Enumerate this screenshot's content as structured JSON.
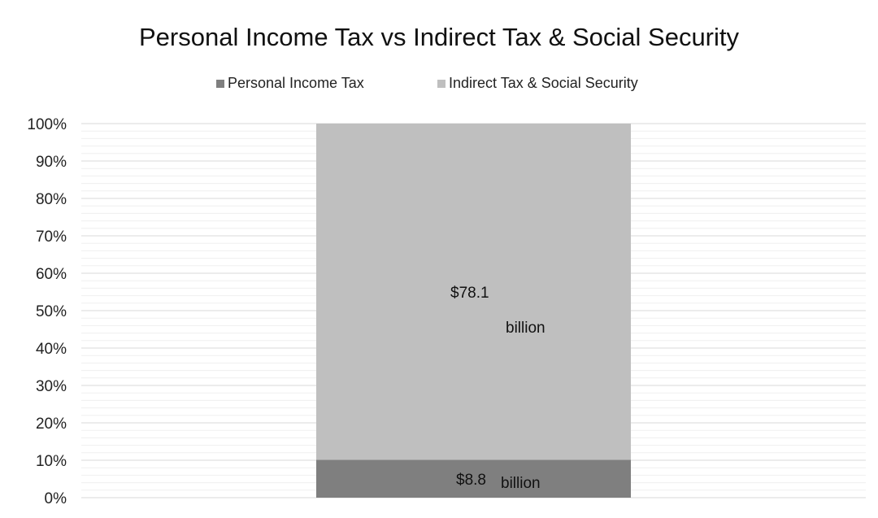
{
  "chart_data": {
    "type": "bar",
    "stacked": true,
    "percent_stacked": true,
    "title": "Personal Income Tax vs Indirect Tax & Social Security",
    "categories": [
      ""
    ],
    "series": [
      {
        "name": "Personal Income Tax",
        "values": [
          8.8
        ],
        "color": "#7f7f7f",
        "label": [
          "$8.8",
          "billion"
        ]
      },
      {
        "name": "Indirect Tax & Social Security",
        "values": [
          78.1
        ],
        "color": "#bfbfbf",
        "label": [
          "$78.1",
          "billion"
        ]
      }
    ],
    "y_ticks": [
      "0%",
      "10%",
      "20%",
      "30%",
      "40%",
      "50%",
      "60%",
      "70%",
      "80%",
      "90%",
      "100%"
    ],
    "ylim": [
      0,
      100
    ],
    "grid": true,
    "legend_position": "top"
  }
}
